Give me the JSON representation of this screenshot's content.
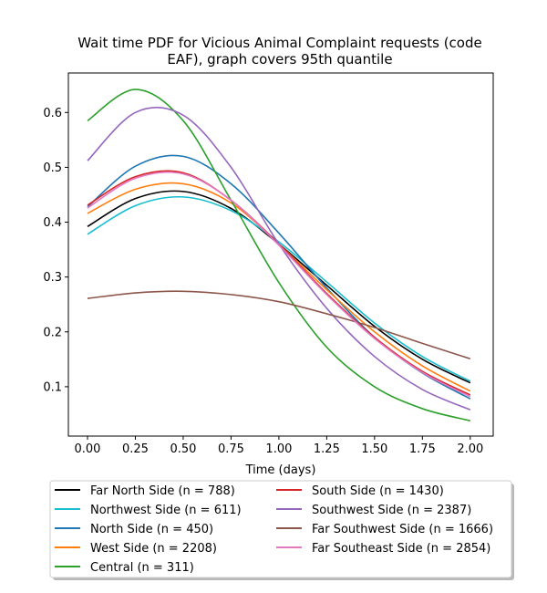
{
  "chart_data": {
    "type": "line",
    "title_line1": "Wait time PDF for Vicious Animal Complaint  requests (code",
    "title_line2": "EAF), graph covers 95th quantile",
    "xlabel": "Time (days)",
    "ylabel": "",
    "xlim": [
      -0.1,
      2.12
    ],
    "ylim": [
      0.01,
      0.672
    ],
    "xticks": [
      0.0,
      0.25,
      0.5,
      0.75,
      1.0,
      1.25,
      1.5,
      1.75,
      2.0
    ],
    "xtick_labels": [
      "0.00",
      "0.25",
      "0.50",
      "0.75",
      "1.00",
      "1.25",
      "1.50",
      "1.75",
      "2.00"
    ],
    "yticks": [
      0.1,
      0.2,
      0.3,
      0.4,
      0.5,
      0.6
    ],
    "ytick_labels": [
      "0.1",
      "0.2",
      "0.3",
      "0.4",
      "0.5",
      "0.6"
    ],
    "grid": false,
    "legend_placement": "below plot, two columns",
    "x": [
      0.0,
      0.25,
      0.5,
      0.75,
      1.0,
      1.25,
      1.5,
      1.75,
      2.0
    ],
    "series": [
      {
        "name": "Far North Side (n = 788)",
        "color": "#000000",
        "values": [
          0.392,
          0.443,
          0.456,
          0.425,
          0.36,
          0.285,
          0.21,
          0.15,
          0.107
        ]
      },
      {
        "name": "Northwest Side (n = 611)",
        "color": "#17becf",
        "values": [
          0.378,
          0.43,
          0.446,
          0.421,
          0.364,
          0.291,
          0.216,
          0.155,
          0.11
        ]
      },
      {
        "name": "North Side (n = 450)",
        "color": "#1f77b4",
        "values": [
          0.428,
          0.502,
          0.52,
          0.47,
          0.38,
          0.28,
          0.19,
          0.125,
          0.078
        ]
      },
      {
        "name": "West Side (n = 2208)",
        "color": "#ff7f0e",
        "values": [
          0.416,
          0.46,
          0.47,
          0.435,
          0.36,
          0.277,
          0.2,
          0.138,
          0.092
        ]
      },
      {
        "name": "Central (n = 311)",
        "color": "#2ca02c",
        "values": [
          0.585,
          0.642,
          0.585,
          0.44,
          0.29,
          0.172,
          0.1,
          0.06,
          0.038
        ]
      },
      {
        "name": "South Side (n = 1430)",
        "color": "#d62728",
        "values": [
          0.431,
          0.483,
          0.49,
          0.44,
          0.36,
          0.27,
          0.19,
          0.128,
          0.085
        ]
      },
      {
        "name": "Southwest Side (n = 2387)",
        "color": "#9467bd",
        "values": [
          0.512,
          0.6,
          0.595,
          0.5,
          0.36,
          0.243,
          0.155,
          0.095,
          0.058
        ]
      },
      {
        "name": "Far Southwest Side (n = 1666)",
        "color": "#8c564b",
        "values": [
          0.261,
          0.271,
          0.274,
          0.268,
          0.255,
          0.233,
          0.208,
          0.179,
          0.151
        ]
      },
      {
        "name": "Far Southeast Side (n = 2854)",
        "color": "#e377c2",
        "values": [
          0.426,
          0.48,
          0.488,
          0.44,
          0.358,
          0.268,
          0.188,
          0.126,
          0.082
        ]
      }
    ]
  }
}
